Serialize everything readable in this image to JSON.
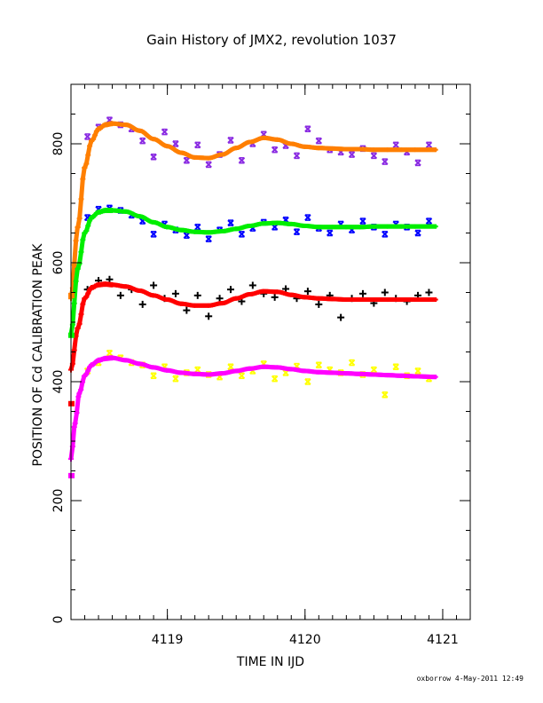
{
  "chart_data": {
    "type": "scatter",
    "title": "Gain History of JMX2, revolution 1037",
    "xlabel": "TIME IN IJD",
    "ylabel": "POSITION OF Cd CALIBRATION PEAK",
    "xlim": [
      4118.3,
      4121.2
    ],
    "ylim": [
      0,
      900
    ],
    "x_ticks": [
      4119,
      4120,
      4121
    ],
    "y_ticks": [
      0,
      200,
      400,
      600,
      800
    ],
    "grid": false,
    "series": [
      {
        "color": "#8a2be2",
        "marker": "x-star",
        "kind": "raw",
        "x": [
          4118.42,
          4118.5,
          4118.58,
          4118.66,
          4118.74,
          4118.82,
          4118.9,
          4118.98,
          4119.06,
          4119.14,
          4119.22,
          4119.3,
          4119.38,
          4119.46,
          4119.54,
          4119.62,
          4119.7,
          4119.78,
          4119.86,
          4119.94,
          4120.02,
          4120.1,
          4120.18,
          4120.26,
          4120.34,
          4120.42,
          4120.5,
          4120.58,
          4120.66,
          4120.74,
          4120.82,
          4120.9
        ],
        "y": [
          812,
          828,
          840,
          832,
          825,
          805,
          778,
          820,
          800,
          772,
          798,
          765,
          782,
          806,
          772,
          800,
          816,
          790,
          797,
          780,
          825,
          805,
          790,
          786,
          782,
          792,
          780,
          770,
          798,
          786,
          768,
          798
        ]
      },
      {
        "color": "#ff7f00",
        "marker": "plus",
        "kind": "fit",
        "x": [
          4118.3,
          4118.35,
          4118.4,
          4118.45,
          4118.5,
          4118.55,
          4118.6,
          4118.7,
          4118.8,
          4118.9,
          4119.0,
          4119.1,
          4119.2,
          4119.3,
          4119.4,
          4119.5,
          4119.6,
          4119.7,
          4119.8,
          4119.9,
          4120.0,
          4120.1,
          4120.2,
          4120.3,
          4120.4,
          4120.5,
          4120.6,
          4120.7,
          4120.8,
          4120.95
        ],
        "y": [
          540,
          660,
          760,
          805,
          825,
          832,
          834,
          832,
          822,
          808,
          796,
          785,
          777,
          776,
          782,
          793,
          803,
          810,
          807,
          800,
          795,
          793,
          792,
          791,
          791,
          790,
          790,
          790,
          790,
          790
        ]
      },
      {
        "color": "#0000ff",
        "marker": "x-star",
        "kind": "raw",
        "x": [
          4118.42,
          4118.5,
          4118.58,
          4118.66,
          4118.74,
          4118.82,
          4118.9,
          4118.98,
          4119.06,
          4119.14,
          4119.22,
          4119.3,
          4119.38,
          4119.46,
          4119.54,
          4119.62,
          4119.7,
          4119.78,
          4119.86,
          4119.94,
          4120.02,
          4120.1,
          4120.18,
          4120.26,
          4120.34,
          4120.42,
          4120.5,
          4120.58,
          4120.66,
          4120.74,
          4120.82,
          4120.9
        ],
        "y": [
          676,
          690,
          692,
          688,
          680,
          670,
          648,
          665,
          655,
          646,
          660,
          640,
          655,
          667,
          648,
          658,
          668,
          660,
          672,
          652,
          676,
          658,
          650,
          665,
          655,
          670,
          660,
          648,
          665,
          660,
          650,
          670
        ]
      },
      {
        "color": "#00ee00",
        "marker": "plus",
        "kind": "fit",
        "x": [
          4118.3,
          4118.35,
          4118.4,
          4118.45,
          4118.5,
          4118.55,
          4118.6,
          4118.7,
          4118.8,
          4118.9,
          4119.0,
          4119.1,
          4119.2,
          4119.3,
          4119.4,
          4119.5,
          4119.6,
          4119.7,
          4119.8,
          4119.9,
          4120.0,
          4120.1,
          4120.2,
          4120.3,
          4120.4,
          4120.5,
          4120.6,
          4120.7,
          4120.8,
          4120.95
        ],
        "y": [
          480,
          590,
          650,
          676,
          685,
          688,
          688,
          686,
          678,
          668,
          660,
          655,
          652,
          651,
          653,
          657,
          662,
          666,
          667,
          665,
          662,
          660,
          660,
          660,
          660,
          661,
          661,
          661,
          661,
          661
        ]
      },
      {
        "color": "#000000",
        "marker": "plus",
        "kind": "raw",
        "x": [
          4118.42,
          4118.5,
          4118.58,
          4118.66,
          4118.74,
          4118.82,
          4118.9,
          4118.98,
          4119.06,
          4119.14,
          4119.22,
          4119.3,
          4119.38,
          4119.46,
          4119.54,
          4119.62,
          4119.7,
          4119.78,
          4119.86,
          4119.94,
          4120.02,
          4120.1,
          4120.18,
          4120.26,
          4120.34,
          4120.42,
          4120.5,
          4120.58,
          4120.66,
          4120.74,
          4120.82,
          4120.9
        ],
        "y": [
          555,
          570,
          572,
          545,
          555,
          530,
          562,
          540,
          548,
          520,
          545,
          510,
          540,
          555,
          535,
          562,
          548,
          542,
          556,
          540,
          552,
          530,
          545,
          508,
          540,
          548,
          532,
          550,
          540,
          535,
          545,
          550
        ]
      },
      {
        "color": "#ff0000",
        "marker": "plus",
        "kind": "fit",
        "x": [
          4118.3,
          4118.35,
          4118.4,
          4118.45,
          4118.5,
          4118.55,
          4118.6,
          4118.7,
          4118.8,
          4118.9,
          4119.0,
          4119.1,
          4119.2,
          4119.3,
          4119.4,
          4119.5,
          4119.6,
          4119.7,
          4119.8,
          4119.9,
          4120.0,
          4120.1,
          4120.2,
          4120.3,
          4120.4,
          4120.5,
          4120.6,
          4120.7,
          4120.8,
          4120.95
        ],
        "y": [
          420,
          490,
          540,
          558,
          563,
          564,
          563,
          560,
          553,
          545,
          538,
          531,
          528,
          528,
          532,
          540,
          547,
          552,
          551,
          546,
          542,
          540,
          539,
          538,
          538,
          538,
          538,
          538,
          538,
          538
        ]
      },
      {
        "color": "#ffff00",
        "marker": "x-star",
        "kind": "raw",
        "x": [
          4118.42,
          4118.5,
          4118.58,
          4118.66,
          4118.74,
          4118.82,
          4118.9,
          4118.98,
          4119.06,
          4119.14,
          4119.22,
          4119.3,
          4119.38,
          4119.46,
          4119.54,
          4119.62,
          4119.7,
          4119.78,
          4119.86,
          4119.94,
          4120.02,
          4120.1,
          4120.18,
          4120.26,
          4120.34,
          4120.42,
          4120.5,
          4120.58,
          4120.66,
          4120.74,
          4120.82,
          4120.9
        ],
        "y": [
          418,
          432,
          448,
          440,
          432,
          428,
          410,
          425,
          405,
          415,
          420,
          412,
          408,
          425,
          410,
          418,
          430,
          405,
          415,
          426,
          400,
          428,
          420,
          415,
          432,
          412,
          420,
          378,
          425,
          410,
          418,
          405
        ]
      },
      {
        "color": "#ff00ff",
        "marker": "plus",
        "kind": "fit",
        "x": [
          4118.3,
          4118.33,
          4118.36,
          4118.4,
          4118.45,
          4118.5,
          4118.55,
          4118.6,
          4118.7,
          4118.8,
          4118.9,
          4119.0,
          4119.1,
          4119.2,
          4119.3,
          4119.4,
          4119.5,
          4119.6,
          4119.7,
          4119.8,
          4119.9,
          4120.0,
          4120.1,
          4120.2,
          4120.3,
          4120.4,
          4120.5,
          4120.6,
          4120.7,
          4120.8,
          4120.95
        ],
        "y": [
          270,
          330,
          380,
          410,
          428,
          436,
          439,
          440,
          436,
          430,
          424,
          419,
          415,
          413,
          412,
          414,
          418,
          422,
          425,
          424,
          421,
          418,
          416,
          415,
          414,
          413,
          412,
          411,
          410,
          409,
          408
        ]
      }
    ],
    "start_markers": [
      {
        "color": "#ff7f00",
        "x": 4118.3,
        "y": 545
      },
      {
        "color": "#00ee00",
        "x": 4118.3,
        "y": 478
      },
      {
        "color": "#ff0000",
        "x": 4118.3,
        "y": 363
      },
      {
        "color": "#ff00ff",
        "x": 4118.3,
        "y": 242
      }
    ]
  },
  "footer": {
    "credit": "oxborrow   4-May-2011 12:49"
  }
}
